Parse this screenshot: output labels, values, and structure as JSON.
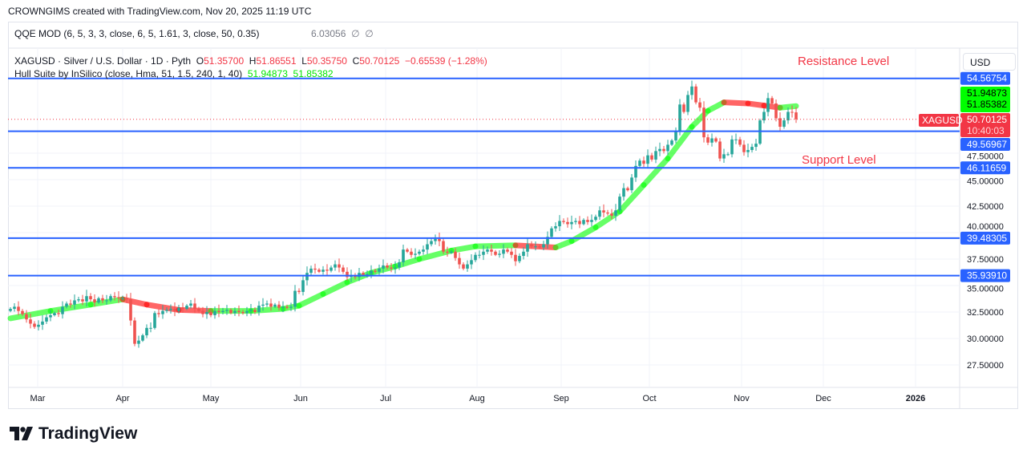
{
  "header": {
    "credit": "CROWNGIMS created with TradingView.com, Nov 20, 2025 11:19 UTC"
  },
  "qqe": {
    "label": "QQE MOD (6, 5, 3, 3, close, 6, 5, 1.61, 3, close, 50, 0.35)",
    "value": "6.03056",
    "na1": "∅",
    "na2": "∅"
  },
  "symbol": {
    "title": "XAGUSD · Silver / U.S. Dollar · 1D · Pyth",
    "o_label": "O",
    "o": "51.35700",
    "h_label": "H",
    "h": "51.86551",
    "l_label": "L",
    "l": "50.35750",
    "c_label": "C",
    "c": "50.70125",
    "change": "−0.65539 (−1.28%)"
  },
  "hull": {
    "label": "Hull Suite by InSilico (close, Hma, 51, 1.5, 240, 1, 40)",
    "v1": "51.94873",
    "v2": "51.85382"
  },
  "currency": "USD",
  "annotations": {
    "resistance": "Resistance Level",
    "support": "Support Level"
  },
  "price_tag": {
    "symbol": "XAGUSD",
    "price": "50.70125",
    "countdown": "10:40:03"
  },
  "hull_tags": [
    "51.94873",
    "51.85382"
  ],
  "level_labels": [
    "54.56754",
    "49.56967",
    "46.11659",
    "39.48305",
    "35.93910"
  ],
  "brand": "TradingView",
  "colors": {
    "up": "#26a69a",
    "down": "#ef5350",
    "level": "#2962ff",
    "hull_up": "#00ff00",
    "hull_down": "#ff0000",
    "price": "#f23645"
  },
  "chart_data": {
    "type": "candlestick",
    "symbol": "XAGUSD",
    "y_ticks": [
      27.5,
      30,
      32.5,
      35,
      37.5,
      40,
      42.5,
      45,
      47.5
    ],
    "y_tick_labels": [
      "27.50000",
      "30.00000",
      "32.50000",
      "35.00000",
      "37.50000",
      "40.00000",
      "42.50000",
      "45.00000",
      "47.50000"
    ],
    "ylim": [
      26.2,
      57.9
    ],
    "x_labels": [
      "Mar",
      "Apr",
      "May",
      "Jun",
      "Jul",
      "Aug",
      "Sep",
      "Oct",
      "Nov",
      "Dec",
      "2026"
    ],
    "last_open": 51.357,
    "last_high": 51.86551,
    "last_low": 50.3575,
    "last_close": 50.70125,
    "closes": [
      32.8,
      33.0,
      32.6,
      32.3,
      31.8,
      31.4,
      31.1,
      31.3,
      31.6,
      32.0,
      32.2,
      32.4,
      32.3,
      33.0,
      33.3,
      33.2,
      33.6,
      33.7,
      33.5,
      34.0,
      33.7,
      33.4,
      33.8,
      33.6,
      33.6,
      34.0,
      33.9,
      33.8,
      33.8,
      33.7,
      31.7,
      29.5,
      29.8,
      30.3,
      31.0,
      31.0,
      32.4,
      32.3,
      32.6,
      32.7,
      32.8,
      32.6,
      32.9,
      32.8,
      33.1,
      33.3,
      32.8,
      32.6,
      32.3,
      32.5,
      32.2,
      32.6,
      32.5,
      32.6,
      32.7,
      32.4,
      32.6,
      32.5,
      32.4,
      32.6,
      32.7,
      32.5,
      33.1,
      33.2,
      33.3,
      33.0,
      33.2,
      32.9,
      33.0,
      32.9,
      33.0,
      34.5,
      34.4,
      35.5,
      36.2,
      36.6,
      36.5,
      36.3,
      36.5,
      36.4,
      36.7,
      37.0,
      36.7,
      36.3,
      35.8,
      35.9,
      35.8,
      36.2,
      36.0,
      36.1,
      36.4,
      36.3,
      36.6,
      36.9,
      36.7,
      36.6,
      36.7,
      37.2,
      38.4,
      38.2,
      37.9,
      38.0,
      38.2,
      38.4,
      38.9,
      39.2,
      39.4,
      39.2,
      38.2,
      38.1,
      38.2,
      37.6,
      37.0,
      36.6,
      37.0,
      37.4,
      37.9,
      37.9,
      38.2,
      38.4,
      38.2,
      37.9,
      38.0,
      38.4,
      38.2,
      37.9,
      37.3,
      37.8,
      38.2,
      38.9,
      38.7,
      38.7,
      38.6,
      38.9,
      39.6,
      40.4,
      40.6,
      41.1,
      41.0,
      40.8,
      41.0,
      41.1,
      40.8,
      41.2,
      41.0,
      41.2,
      41.5,
      42.1,
      41.9,
      41.8,
      41.6,
      42.1,
      43.4,
      44.2,
      44.0,
      45.2,
      46.3,
      46.8,
      46.5,
      47.3,
      46.9,
      47.7,
      47.9,
      47.7,
      48.3,
      48.7,
      49.6,
      52.1,
      51.4,
      53.0,
      53.8,
      52.3,
      51.8,
      49.0,
      48.5,
      48.9,
      48.6,
      47.0,
      47.4,
      47.4,
      48.8,
      48.8,
      48.3,
      47.6,
      47.8,
      48.1,
      48.4,
      50.6,
      51.4,
      52.7,
      52.2,
      50.8,
      50.0,
      50.6,
      51.4,
      51.357,
      50.70125
    ],
    "hull_ma": [
      [
        0,
        31.9
      ],
      [
        10,
        32.6
      ],
      [
        20,
        33.2
      ],
      [
        28,
        33.7
      ],
      [
        34,
        33.2
      ],
      [
        42,
        32.7
      ],
      [
        50,
        32.6
      ],
      [
        60,
        32.6
      ],
      [
        68,
        32.8
      ],
      [
        72,
        33.1
      ],
      [
        78,
        34.2
      ],
      [
        84,
        35.3
      ],
      [
        90,
        36.2
      ],
      [
        96,
        36.8
      ],
      [
        102,
        37.5
      ],
      [
        110,
        38.3
      ],
      [
        116,
        38.7
      ],
      [
        126,
        38.8
      ],
      [
        136,
        38.6
      ],
      [
        140,
        39.2
      ],
      [
        146,
        40.5
      ],
      [
        152,
        42.0
      ],
      [
        158,
        44.5
      ],
      [
        164,
        47.0
      ],
      [
        170,
        50.0
      ],
      [
        174,
        51.5
      ],
      [
        178,
        52.3
      ],
      [
        184,
        52.2
      ],
      [
        188,
        52.0
      ],
      [
        192,
        51.8
      ],
      [
        196,
        51.95
      ]
    ],
    "levels": [
      54.56754,
      49.56967,
      46.11659,
      39.48305,
      35.9391
    ]
  }
}
